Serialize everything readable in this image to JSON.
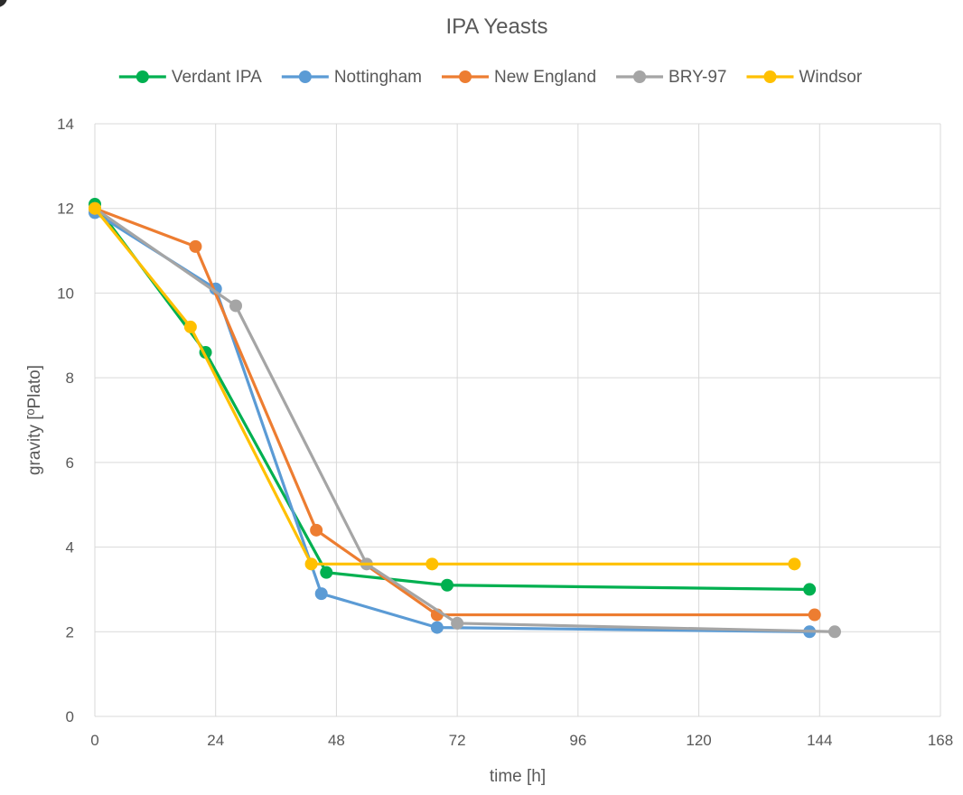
{
  "chart_data": {
    "type": "line",
    "title": "IPA Yeasts",
    "xlabel": "time [h]",
    "ylabel": "gravity [ºPlato]",
    "xlim": [
      0,
      168
    ],
    "ylim": [
      0,
      14
    ],
    "x_ticks": [
      0,
      24,
      48,
      72,
      96,
      120,
      144,
      168
    ],
    "y_ticks": [
      0,
      2,
      4,
      6,
      8,
      10,
      12,
      14
    ],
    "grid": true,
    "legend_position": "top",
    "series": [
      {
        "name": "Verdant IPA",
        "color": "#00b050",
        "points": [
          [
            0,
            12.1
          ],
          [
            22,
            8.6
          ],
          [
            46,
            3.4
          ],
          [
            70,
            3.1
          ],
          [
            142,
            3.0
          ]
        ]
      },
      {
        "name": "Nottingham",
        "color": "#5b9bd5",
        "points": [
          [
            0,
            11.9
          ],
          [
            24,
            10.1
          ],
          [
            45,
            2.9
          ],
          [
            68,
            2.1
          ],
          [
            142,
            2.0
          ]
        ]
      },
      {
        "name": "New England",
        "color": "#ed7d31",
        "points": [
          [
            0,
            12.0
          ],
          [
            20,
            11.1
          ],
          [
            44,
            4.4
          ],
          [
            68,
            2.4
          ],
          [
            143,
            2.4
          ]
        ]
      },
      {
        "name": "BRY-97",
        "color": "#a5a5a5",
        "points": [
          [
            0,
            12.0
          ],
          [
            28,
            9.7
          ],
          [
            54,
            3.6
          ],
          [
            72,
            2.2
          ],
          [
            147,
            2.0
          ]
        ]
      },
      {
        "name": "Windsor",
        "color": "#ffc000",
        "points": [
          [
            0,
            12.0
          ],
          [
            19,
            9.2
          ],
          [
            43,
            3.6
          ],
          [
            67,
            3.6
          ],
          [
            139,
            3.6
          ]
        ]
      }
    ]
  }
}
